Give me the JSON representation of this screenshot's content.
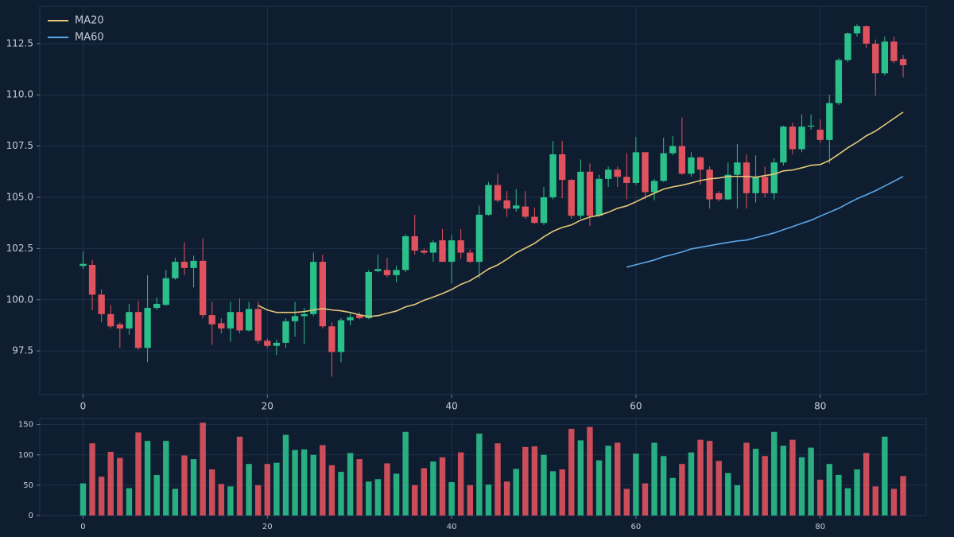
{
  "chart_data": [
    {
      "type": "candlestick",
      "x": [
        0,
        1,
        2,
        3,
        4,
        5,
        6,
        7,
        8,
        9,
        10,
        11,
        12,
        13,
        14,
        15,
        16,
        17,
        18,
        19,
        20,
        21,
        22,
        23,
        24,
        25,
        26,
        27,
        28,
        29,
        30,
        31,
        32,
        33,
        34,
        35,
        36,
        37,
        38,
        39,
        40,
        41,
        42,
        43,
        44,
        45,
        46,
        47,
        48,
        49,
        50,
        51,
        52,
        53,
        54,
        55,
        56,
        57,
        58,
        59,
        60,
        61,
        62,
        63,
        64,
        65,
        66,
        67,
        68,
        69,
        70,
        71,
        72,
        73,
        74,
        75,
        76,
        77,
        78,
        79,
        80,
        81,
        82,
        83,
        84,
        85,
        86,
        87,
        88,
        89
      ],
      "open": [
        101.65,
        101.7,
        100.25,
        99.3,
        98.8,
        98.6,
        99.4,
        97.65,
        99.6,
        99.75,
        101.05,
        101.85,
        101.55,
        101.9,
        99.25,
        98.85,
        98.6,
        99.4,
        98.5,
        99.55,
        98.0,
        97.75,
        97.9,
        98.95,
        99.2,
        99.3,
        101.85,
        98.7,
        97.45,
        99.0,
        99.25,
        99.1,
        101.4,
        101.45,
        101.2,
        101.45,
        103.1,
        102.4,
        102.3,
        102.9,
        101.85,
        102.9,
        102.3,
        101.85,
        104.15,
        105.6,
        104.85,
        104.45,
        104.55,
        104.05,
        103.75,
        105.0,
        107.1,
        105.85,
        104.1,
        106.25,
        104.1,
        105.9,
        106.35,
        106.0,
        105.7,
        107.2,
        105.25,
        105.8,
        107.15,
        107.5,
        106.15,
        106.95,
        106.35,
        105.2,
        104.9,
        106.1,
        106.7,
        105.2,
        106.0,
        105.2,
        106.7,
        108.45,
        107.35,
        108.45,
        108.3,
        107.8,
        109.6,
        111.7,
        113.0,
        113.35,
        112.5,
        111.05,
        112.6,
        111.75
      ],
      "high": [
        102.35,
        101.95,
        100.5,
        99.75,
        98.9,
        99.8,
        99.95,
        101.2,
        100.1,
        101.45,
        102.05,
        102.8,
        102.15,
        103.0,
        99.9,
        99.1,
        99.9,
        100.05,
        99.9,
        99.9,
        98.1,
        98.05,
        99.1,
        99.9,
        99.6,
        102.3,
        102.2,
        98.9,
        99.1,
        99.4,
        99.4,
        101.45,
        102.2,
        102.05,
        101.65,
        103.2,
        104.15,
        102.5,
        102.9,
        103.45,
        103.15,
        103.45,
        102.45,
        104.6,
        105.75,
        106.15,
        105.3,
        105.4,
        105.3,
        104.5,
        105.5,
        107.75,
        107.75,
        105.9,
        106.85,
        106.65,
        106.1,
        106.5,
        106.5,
        107.15,
        107.95,
        107.2,
        105.9,
        107.9,
        108.0,
        108.9,
        107.2,
        107.0,
        106.5,
        105.3,
        106.7,
        107.6,
        107.1,
        107.05,
        106.5,
        106.9,
        108.5,
        108.65,
        109.05,
        109.05,
        108.8,
        110.0,
        111.8,
        113.05,
        113.45,
        113.4,
        112.7,
        112.85,
        112.85,
        111.95
      ],
      "low": [
        101.5,
        99.5,
        98.9,
        98.6,
        97.65,
        98.3,
        97.55,
        96.95,
        99.5,
        99.7,
        100.98,
        101.2,
        100.6,
        99.1,
        97.8,
        98.35,
        97.95,
        98.35,
        98.45,
        97.85,
        97.65,
        97.3,
        97.65,
        98.2,
        97.85,
        99.2,
        98.6,
        96.25,
        96.95,
        98.75,
        99.05,
        99.05,
        101.35,
        101.1,
        100.85,
        101.35,
        102.2,
        102.2,
        101.85,
        101.85,
        100.8,
        102.0,
        101.8,
        101.05,
        104.1,
        104.75,
        104.05,
        104.3,
        103.95,
        103.7,
        103.65,
        104.9,
        104.95,
        103.95,
        103.95,
        103.6,
        104.05,
        105.5,
        105.5,
        104.9,
        105.6,
        104.9,
        104.85,
        105.75,
        107.05,
        106.1,
        106.0,
        105.6,
        104.45,
        104.8,
        104.85,
        104.45,
        104.45,
        104.75,
        105.0,
        104.9,
        106.55,
        107.1,
        107.2,
        108.3,
        107.65,
        106.65,
        109.5,
        111.6,
        112.85,
        112.3,
        109.95,
        110.95,
        111.55,
        110.85
      ],
      "close": [
        101.75,
        100.25,
        99.3,
        98.7,
        98.6,
        99.4,
        97.65,
        99.6,
        99.8,
        101.05,
        101.85,
        101.55,
        101.9,
        99.25,
        98.8,
        98.6,
        99.4,
        98.5,
        99.55,
        98.0,
        97.75,
        97.9,
        98.95,
        99.2,
        99.3,
        101.85,
        98.7,
        97.45,
        99.0,
        99.15,
        99.1,
        101.35,
        101.5,
        101.2,
        101.45,
        103.1,
        102.4,
        102.3,
        102.8,
        101.85,
        102.9,
        102.3,
        101.85,
        104.15,
        105.6,
        104.85,
        104.45,
        104.6,
        104.05,
        103.75,
        105.0,
        107.1,
        105.85,
        104.1,
        106.25,
        104.1,
        105.9,
        106.35,
        106.0,
        105.7,
        107.2,
        105.25,
        105.8,
        107.15,
        107.5,
        106.15,
        106.95,
        106.35,
        104.9,
        104.9,
        106.1,
        106.7,
        105.2,
        106.0,
        105.2,
        106.7,
        108.45,
        107.35,
        108.45,
        108.5,
        107.8,
        109.6,
        111.7,
        113.0,
        113.35,
        112.5,
        111.05,
        112.6,
        111.65,
        111.45
      ],
      "up_color": "#2bbf8a",
      "down_color": "#e0535e",
      "series": [
        {
          "name": "MA20",
          "color": "#e3c878",
          "values": [
            null,
            null,
            null,
            null,
            null,
            null,
            null,
            null,
            null,
            null,
            null,
            null,
            null,
            null,
            null,
            null,
            null,
            null,
            null,
            99.72,
            99.5,
            99.38,
            99.38,
            99.38,
            99.42,
            99.5,
            99.57,
            99.5,
            99.46,
            99.38,
            99.26,
            99.18,
            99.22,
            99.34,
            99.45,
            99.65,
            99.77,
            99.97,
            100.13,
            100.3,
            100.5,
            100.75,
            100.93,
            101.2,
            101.5,
            101.7,
            101.98,
            102.29,
            102.52,
            102.75,
            103.07,
            103.34,
            103.53,
            103.65,
            103.88,
            104.04,
            104.12,
            104.27,
            104.46,
            104.58,
            104.78,
            105.0,
            105.2,
            105.4,
            105.51,
            105.59,
            105.7,
            105.82,
            105.9,
            105.94,
            106.02,
            106.02,
            106.02,
            105.98,
            106.06,
            106.13,
            106.29,
            106.33,
            106.44,
            106.56,
            106.6,
            106.8,
            107.1,
            107.42,
            107.69,
            108.0,
            108.23,
            108.54,
            108.85,
            109.16
          ]
        },
        {
          "name": "MA60",
          "color": "#5aa8e8",
          "values": [
            null,
            null,
            null,
            null,
            null,
            null,
            null,
            null,
            null,
            null,
            null,
            null,
            null,
            null,
            null,
            null,
            null,
            null,
            null,
            null,
            null,
            null,
            null,
            null,
            null,
            null,
            null,
            null,
            null,
            null,
            null,
            null,
            null,
            null,
            null,
            null,
            null,
            null,
            null,
            null,
            null,
            null,
            null,
            null,
            null,
            null,
            null,
            null,
            null,
            null,
            null,
            null,
            null,
            null,
            null,
            null,
            null,
            null,
            null,
            101.59,
            101.71,
            101.82,
            101.94,
            102.1,
            102.21,
            102.33,
            102.48,
            102.56,
            102.64,
            102.72,
            102.8,
            102.87,
            102.91,
            103.03,
            103.14,
            103.26,
            103.42,
            103.57,
            103.73,
            103.88,
            104.08,
            104.27,
            104.46,
            104.7,
            104.93,
            105.12,
            105.32,
            105.55,
            105.78,
            106.02
          ]
        }
      ],
      "xlim": [
        -4.7,
        91.5
      ],
      "xticks": [
        0,
        20,
        40,
        60,
        80
      ],
      "ylim": [
        95.37,
        114.32
      ],
      "yticks": [
        {
          "value": 97.5,
          "label": "97.5"
        },
        {
          "value": 100,
          "label": "100.0"
        },
        {
          "value": 102.5,
          "label": "102.5"
        },
        {
          "value": 105,
          "label": "105.0"
        },
        {
          "value": 107.5,
          "label": "107.5"
        },
        {
          "value": 110,
          "label": "110.0"
        },
        {
          "value": 112.5,
          "label": "112.5"
        }
      ],
      "grid": true,
      "legend": "upper left"
    },
    {
      "type": "bar",
      "x": [
        0,
        1,
        2,
        3,
        4,
        5,
        6,
        7,
        8,
        9,
        10,
        11,
        12,
        13,
        14,
        15,
        16,
        17,
        18,
        19,
        20,
        21,
        22,
        23,
        24,
        25,
        26,
        27,
        28,
        29,
        30,
        31,
        32,
        33,
        34,
        35,
        36,
        37,
        38,
        39,
        40,
        41,
        42,
        43,
        44,
        45,
        46,
        47,
        48,
        49,
        50,
        51,
        52,
        53,
        54,
        55,
        56,
        57,
        58,
        59,
        60,
        61,
        62,
        63,
        64,
        65,
        66,
        67,
        68,
        69,
        70,
        71,
        72,
        73,
        74,
        75,
        76,
        77,
        78,
        79,
        80,
        81,
        82,
        83,
        84,
        85,
        86,
        87,
        88,
        89
      ],
      "values": [
        53,
        119,
        64,
        105,
        95,
        45,
        137,
        123,
        67,
        123,
        44,
        99,
        93,
        153,
        76,
        52,
        48,
        130,
        85,
        50,
        85,
        87,
        133,
        108,
        109,
        100,
        116,
        83,
        72,
        103,
        93,
        56,
        60,
        86,
        69,
        138,
        50,
        78,
        89,
        96,
        55,
        104,
        50,
        135,
        51,
        119,
        56,
        77,
        113,
        114,
        100,
        73,
        76,
        143,
        124,
        146,
        91,
        115,
        120,
        44,
        102,
        53,
        120,
        98,
        62,
        85,
        104,
        125,
        123,
        90,
        70,
        50,
        120,
        110,
        98,
        138,
        115,
        125,
        96,
        112,
        59,
        85,
        67,
        45,
        76,
        103,
        48,
        130,
        44,
        65
      ],
      "xlim": [
        -4.7,
        91.5
      ],
      "xticks": [
        0,
        20,
        40,
        60,
        80
      ],
      "ylim": [
        0,
        160
      ],
      "yticks": [
        0,
        50,
        100,
        150
      ],
      "grid": true
    }
  ]
}
